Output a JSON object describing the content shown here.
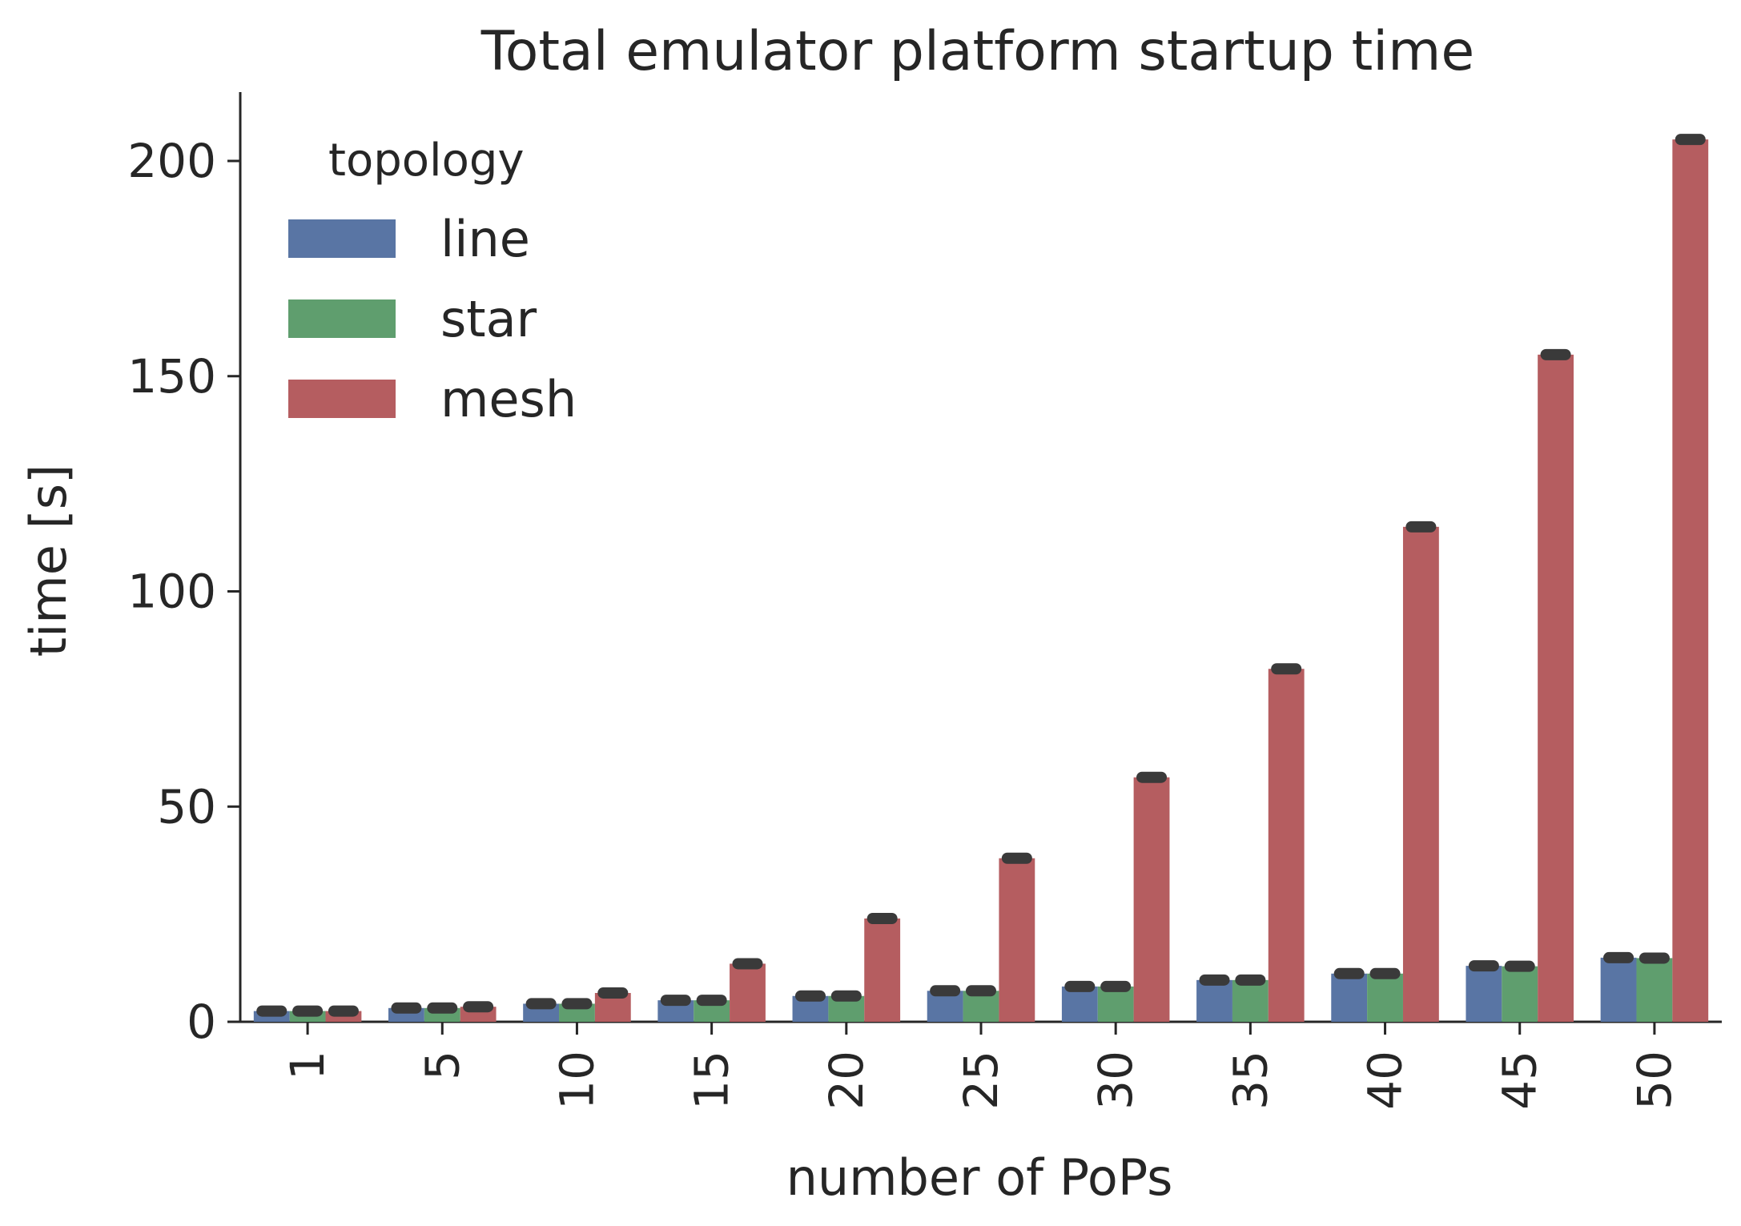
{
  "chart_data": {
    "type": "bar",
    "title": "Total emulator platform startup time",
    "xlabel": "number of PoPs",
    "ylabel": "time [s]",
    "categories": [
      "1",
      "5",
      "10",
      "15",
      "20",
      "25",
      "30",
      "35",
      "40",
      "45",
      "50"
    ],
    "ylim": [
      0,
      216
    ],
    "yticks": [
      0,
      50,
      100,
      150,
      200
    ],
    "legend": {
      "title": "topology",
      "placement": "upper-left"
    },
    "series": [
      {
        "name": "line",
        "color": "#5975a4",
        "values": [
          2.5,
          3.2,
          4.2,
          5.0,
          6.0,
          7.2,
          8.2,
          9.7,
          11.2,
          13.0,
          14.9
        ]
      },
      {
        "name": "star",
        "color": "#5f9e6e",
        "values": [
          2.5,
          3.2,
          4.2,
          5.0,
          6.0,
          7.2,
          8.2,
          9.7,
          11.2,
          12.9,
          14.8
        ]
      },
      {
        "name": "mesh",
        "color": "#b55d60",
        "values": [
          2.5,
          3.5,
          6.7,
          13.5,
          24.0,
          38.0,
          56.8,
          82.0,
          115.0,
          155.0,
          205.0
        ]
      }
    ]
  }
}
